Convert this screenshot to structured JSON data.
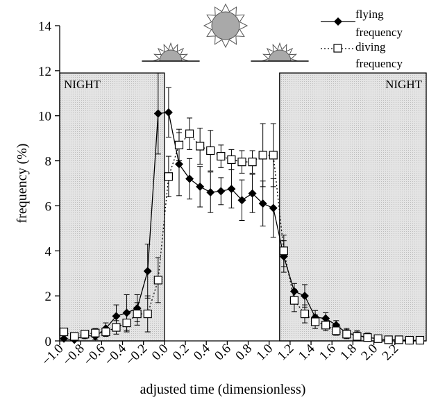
{
  "chart_data": {
    "type": "line",
    "xlabel": "adjusted time (dimensionless)",
    "ylabel": "frequency (%)",
    "xlim": [
      -1.0,
      2.5
    ],
    "ylim": [
      0,
      14
    ],
    "grid": false,
    "legend_position": "top-right",
    "y_ticks": [
      "0",
      "2",
      "4",
      "6",
      "8",
      "10",
      "12",
      "14"
    ],
    "x_ticks": [
      "-1.0",
      "-0.8",
      "-0.6",
      "-0.4",
      "-0.2",
      "0.0",
      "0.2",
      "0.4",
      "0.6",
      "0.8",
      "1.0",
      "1.2",
      "1.4",
      "1.6",
      "1.8",
      "2.0",
      "2.2"
    ],
    "night_label": "NIGHT",
    "night_regions": [
      {
        "x0": -1.0,
        "x1": 0.0,
        "y_top": 11.9
      },
      {
        "x0": 1.1,
        "x1": 2.5,
        "y_top": 11.9
      }
    ],
    "series": [
      {
        "name": "flying frequency",
        "style": "solid",
        "marker": "diamond",
        "color": "#000000",
        "points": [
          {
            "x": -0.96,
            "y": 0.1,
            "err": 0.15
          },
          {
            "x": -0.86,
            "y": 0.05,
            "err": 0.1
          },
          {
            "x": -0.76,
            "y": 0.25,
            "err": 0.15
          },
          {
            "x": -0.66,
            "y": 0.2,
            "err": 0.15
          },
          {
            "x": -0.56,
            "y": 0.55,
            "err": 0.25
          },
          {
            "x": -0.46,
            "y": 1.1,
            "err": 0.5
          },
          {
            "x": -0.36,
            "y": 1.25,
            "err": 0.8
          },
          {
            "x": -0.26,
            "y": 1.45,
            "err": 0.6
          },
          {
            "x": -0.16,
            "y": 3.1,
            "err": 1.2
          },
          {
            "x": -0.06,
            "y": 10.1,
            "err": 1.8
          },
          {
            "x": 0.04,
            "y": 10.15,
            "err": 1.1
          },
          {
            "x": 0.14,
            "y": 7.85,
            "err": 1.4
          },
          {
            "x": 0.24,
            "y": 7.2,
            "err": 0.9
          },
          {
            "x": 0.34,
            "y": 6.85,
            "err": 0.9
          },
          {
            "x": 0.44,
            "y": 6.6,
            "err": 0.9
          },
          {
            "x": 0.54,
            "y": 6.65,
            "err": 0.6
          },
          {
            "x": 0.64,
            "y": 6.75,
            "err": 0.85
          },
          {
            "x": 0.74,
            "y": 6.25,
            "err": 0.9
          },
          {
            "x": 0.84,
            "y": 6.55,
            "err": 0.85
          },
          {
            "x": 0.94,
            "y": 6.1,
            "err": 1.0
          },
          {
            "x": 1.04,
            "y": 5.9,
            "err": 1.3
          },
          {
            "x": 1.14,
            "y": 3.75,
            "err": 0.7
          },
          {
            "x": 1.24,
            "y": 2.2,
            "err": 0.35
          },
          {
            "x": 1.34,
            "y": 2.0,
            "err": 0.5
          },
          {
            "x": 1.44,
            "y": 1.05,
            "err": 0.3
          },
          {
            "x": 1.54,
            "y": 1.0,
            "err": 0.25
          },
          {
            "x": 1.64,
            "y": 0.7,
            "err": 0.2
          },
          {
            "x": 1.74,
            "y": 0.35,
            "err": 0.2
          },
          {
            "x": 1.84,
            "y": 0.25,
            "err": 0.2
          },
          {
            "x": 1.94,
            "y": 0.15,
            "err": 0.2
          },
          {
            "x": 2.04,
            "y": 0.1,
            "err": 0.15
          },
          {
            "x": 2.14,
            "y": 0.05,
            "err": 0.1
          },
          {
            "x": 2.24,
            "y": 0.05,
            "err": 0.05
          },
          {
            "x": 2.34,
            "y": 0.02,
            "err": 0.05
          },
          {
            "x": 2.44,
            "y": 0.02,
            "err": 0.05
          }
        ]
      },
      {
        "name": "diving frequency",
        "style": "dotted",
        "marker": "square",
        "color": "#000000",
        "points": [
          {
            "x": -0.96,
            "y": 0.4,
            "err": 0.15
          },
          {
            "x": -0.86,
            "y": 0.2,
            "err": 0.1
          },
          {
            "x": -0.76,
            "y": 0.3,
            "err": 0.15
          },
          {
            "x": -0.66,
            "y": 0.35,
            "err": 0.2
          },
          {
            "x": -0.56,
            "y": 0.4,
            "err": 0.2
          },
          {
            "x": -0.46,
            "y": 0.6,
            "err": 0.3
          },
          {
            "x": -0.36,
            "y": 0.8,
            "err": 0.4
          },
          {
            "x": -0.26,
            "y": 1.2,
            "err": 0.5
          },
          {
            "x": -0.16,
            "y": 1.2,
            "err": 0.8
          },
          {
            "x": -0.06,
            "y": 2.7,
            "err": 1.0
          },
          {
            "x": 0.04,
            "y": 7.3,
            "err": 0.9
          },
          {
            "x": 0.14,
            "y": 8.7,
            "err": 0.7
          },
          {
            "x": 0.24,
            "y": 9.2,
            "err": 0.7
          },
          {
            "x": 0.34,
            "y": 8.65,
            "err": 0.8
          },
          {
            "x": 0.44,
            "y": 8.45,
            "err": 0.9
          },
          {
            "x": 0.54,
            "y": 8.2,
            "err": 0.5
          },
          {
            "x": 0.64,
            "y": 8.05,
            "err": 0.45
          },
          {
            "x": 0.74,
            "y": 7.95,
            "err": 0.5
          },
          {
            "x": 0.84,
            "y": 7.95,
            "err": 0.5
          },
          {
            "x": 0.94,
            "y": 8.25,
            "err": 1.4
          },
          {
            "x": 1.04,
            "y": 8.25,
            "err": 1.4
          },
          {
            "x": 1.14,
            "y": 4.0,
            "err": 0.7
          },
          {
            "x": 1.24,
            "y": 1.8,
            "err": 0.5
          },
          {
            "x": 1.34,
            "y": 1.2,
            "err": 0.4
          },
          {
            "x": 1.44,
            "y": 0.85,
            "err": 0.3
          },
          {
            "x": 1.54,
            "y": 0.7,
            "err": 0.25
          },
          {
            "x": 1.64,
            "y": 0.45,
            "err": 0.2
          },
          {
            "x": 1.74,
            "y": 0.3,
            "err": 0.2
          },
          {
            "x": 1.84,
            "y": 0.2,
            "err": 0.2
          },
          {
            "x": 1.94,
            "y": 0.15,
            "err": 0.15
          },
          {
            "x": 2.04,
            "y": 0.1,
            "err": 0.15
          },
          {
            "x": 2.14,
            "y": 0.05,
            "err": 0.1
          },
          {
            "x": 2.24,
            "y": 0.05,
            "err": 0.05
          },
          {
            "x": 2.34,
            "y": 0.03,
            "err": 0.05
          },
          {
            "x": 2.44,
            "y": 0.03,
            "err": 0.05
          }
        ]
      }
    ]
  },
  "legend": {
    "flying_line1": "flying",
    "flying_line2": "frequency",
    "diving_line1": "diving",
    "diving_line2": "frequency"
  }
}
